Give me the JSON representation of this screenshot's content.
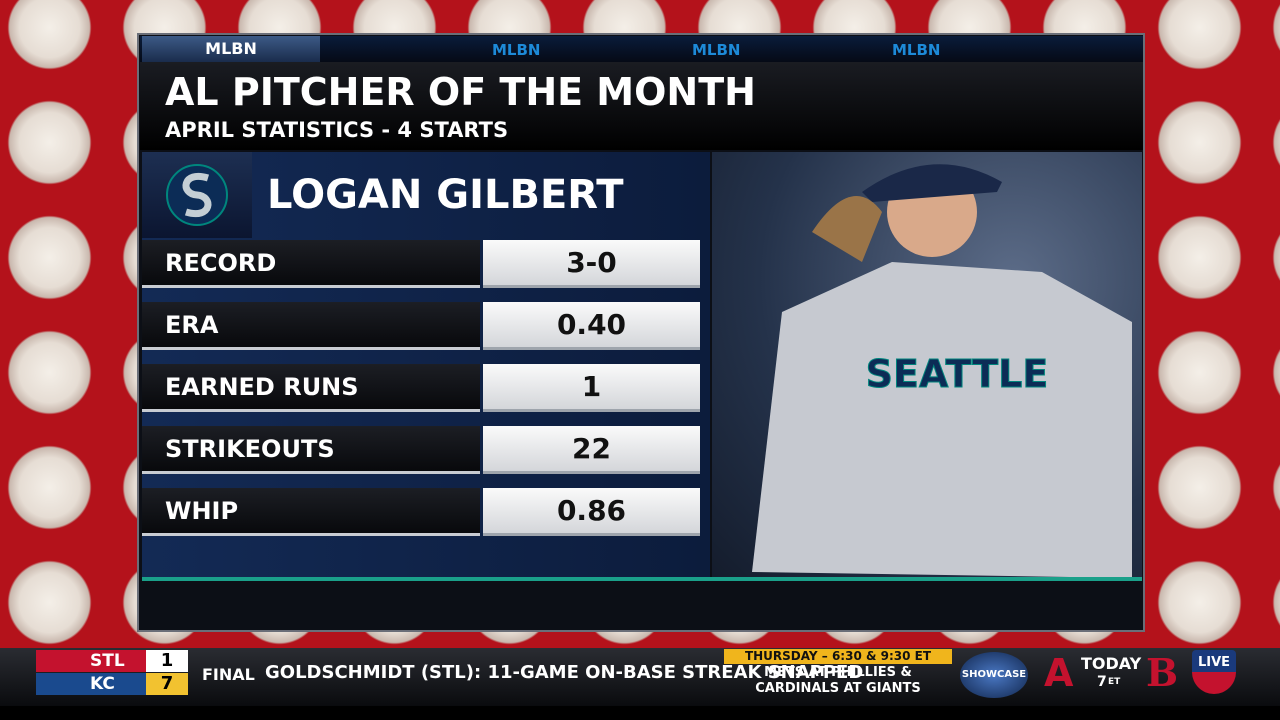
{
  "network": "MLBN",
  "title": "AL PITCHER OF THE MONTH",
  "subtitle": "APRIL STATISTICS - 4 STARTS",
  "player": "LOGAN GILBERT",
  "stats": [
    {
      "label": "RECORD",
      "value": "3-0"
    },
    {
      "label": "ERA",
      "value": "0.40"
    },
    {
      "label": "EARNED RUNS",
      "value": "1"
    },
    {
      "label": "STRIKEOUTS",
      "value": "22"
    },
    {
      "label": "WHIP",
      "value": "0.86"
    }
  ],
  "jersey": "SEATTLE",
  "ticker": {
    "score": {
      "away": "STL",
      "away_runs": "1",
      "home": "KC",
      "home_runs": "7",
      "status": "FINAL"
    },
    "headline": "GOLDSCHMIDT (STL): 11-GAME ON-BASE STREAK SNAPPED",
    "promo": {
      "when": "THURSDAY – 6:30 & 9:30 ET",
      "line1": "METS AT PHILLIES &",
      "line2": "CARDINALS AT GIANTS"
    },
    "showcase": "SHOWCASE",
    "today": "TODAY",
    "time": "7",
    "zone": "ET",
    "live": "LIVE"
  }
}
